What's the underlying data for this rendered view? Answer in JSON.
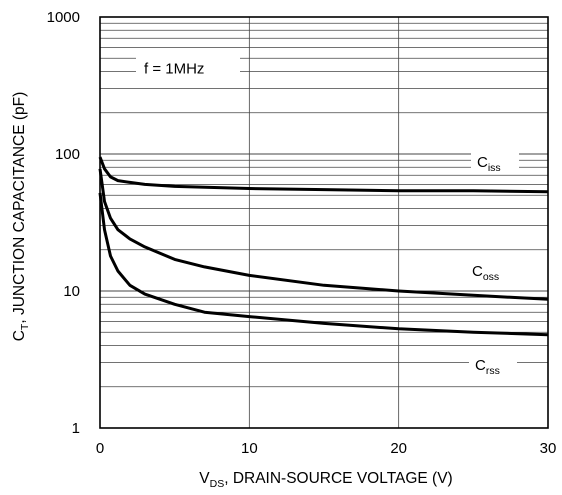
{
  "chart_data": {
    "type": "line",
    "title": "",
    "xlabel": {
      "main": "V",
      "sub": "DS",
      "rest": ", DRAIN-SOURCE VOLTAGE (V)"
    },
    "ylabel": {
      "main": "C",
      "sub": "T",
      "rest": ", JUNCTION CAPACITANCE (pF)"
    },
    "xlim": [
      0,
      30
    ],
    "ylim": [
      1,
      1000
    ],
    "yscale": "log",
    "grid": true,
    "x_ticks": [
      "0",
      "10",
      "20",
      "30"
    ],
    "y_ticks": [
      "1",
      "10",
      "100",
      "1000"
    ],
    "annotation": "f = 1MHz",
    "series": [
      {
        "name": "iss",
        "label_main": "C",
        "label_sub": "iss",
        "x": [
          0,
          0.3,
          0.7,
          1.2,
          2,
          3,
          5,
          10,
          15,
          20,
          25,
          30
        ],
        "y": [
          95,
          78,
          68,
          64,
          62,
          60,
          58,
          56,
          55,
          54,
          54,
          53
        ]
      },
      {
        "name": "oss",
        "label_main": "C",
        "label_sub": "oss",
        "x": [
          0,
          0.3,
          0.7,
          1.2,
          2,
          3,
          5,
          7,
          10,
          15,
          20,
          25,
          30
        ],
        "y": [
          78,
          45,
          34,
          28,
          24,
          21,
          17,
          15,
          13,
          11,
          10,
          9.3,
          8.7
        ]
      },
      {
        "name": "rss",
        "label_main": "C",
        "label_sub": "rss",
        "x": [
          0,
          0.3,
          0.7,
          1.2,
          2,
          3,
          5,
          7,
          10,
          15,
          20,
          25,
          30
        ],
        "y": [
          52,
          28,
          18,
          14,
          11,
          9.5,
          8,
          7,
          6.5,
          5.8,
          5.3,
          5.0,
          4.8
        ]
      }
    ]
  }
}
